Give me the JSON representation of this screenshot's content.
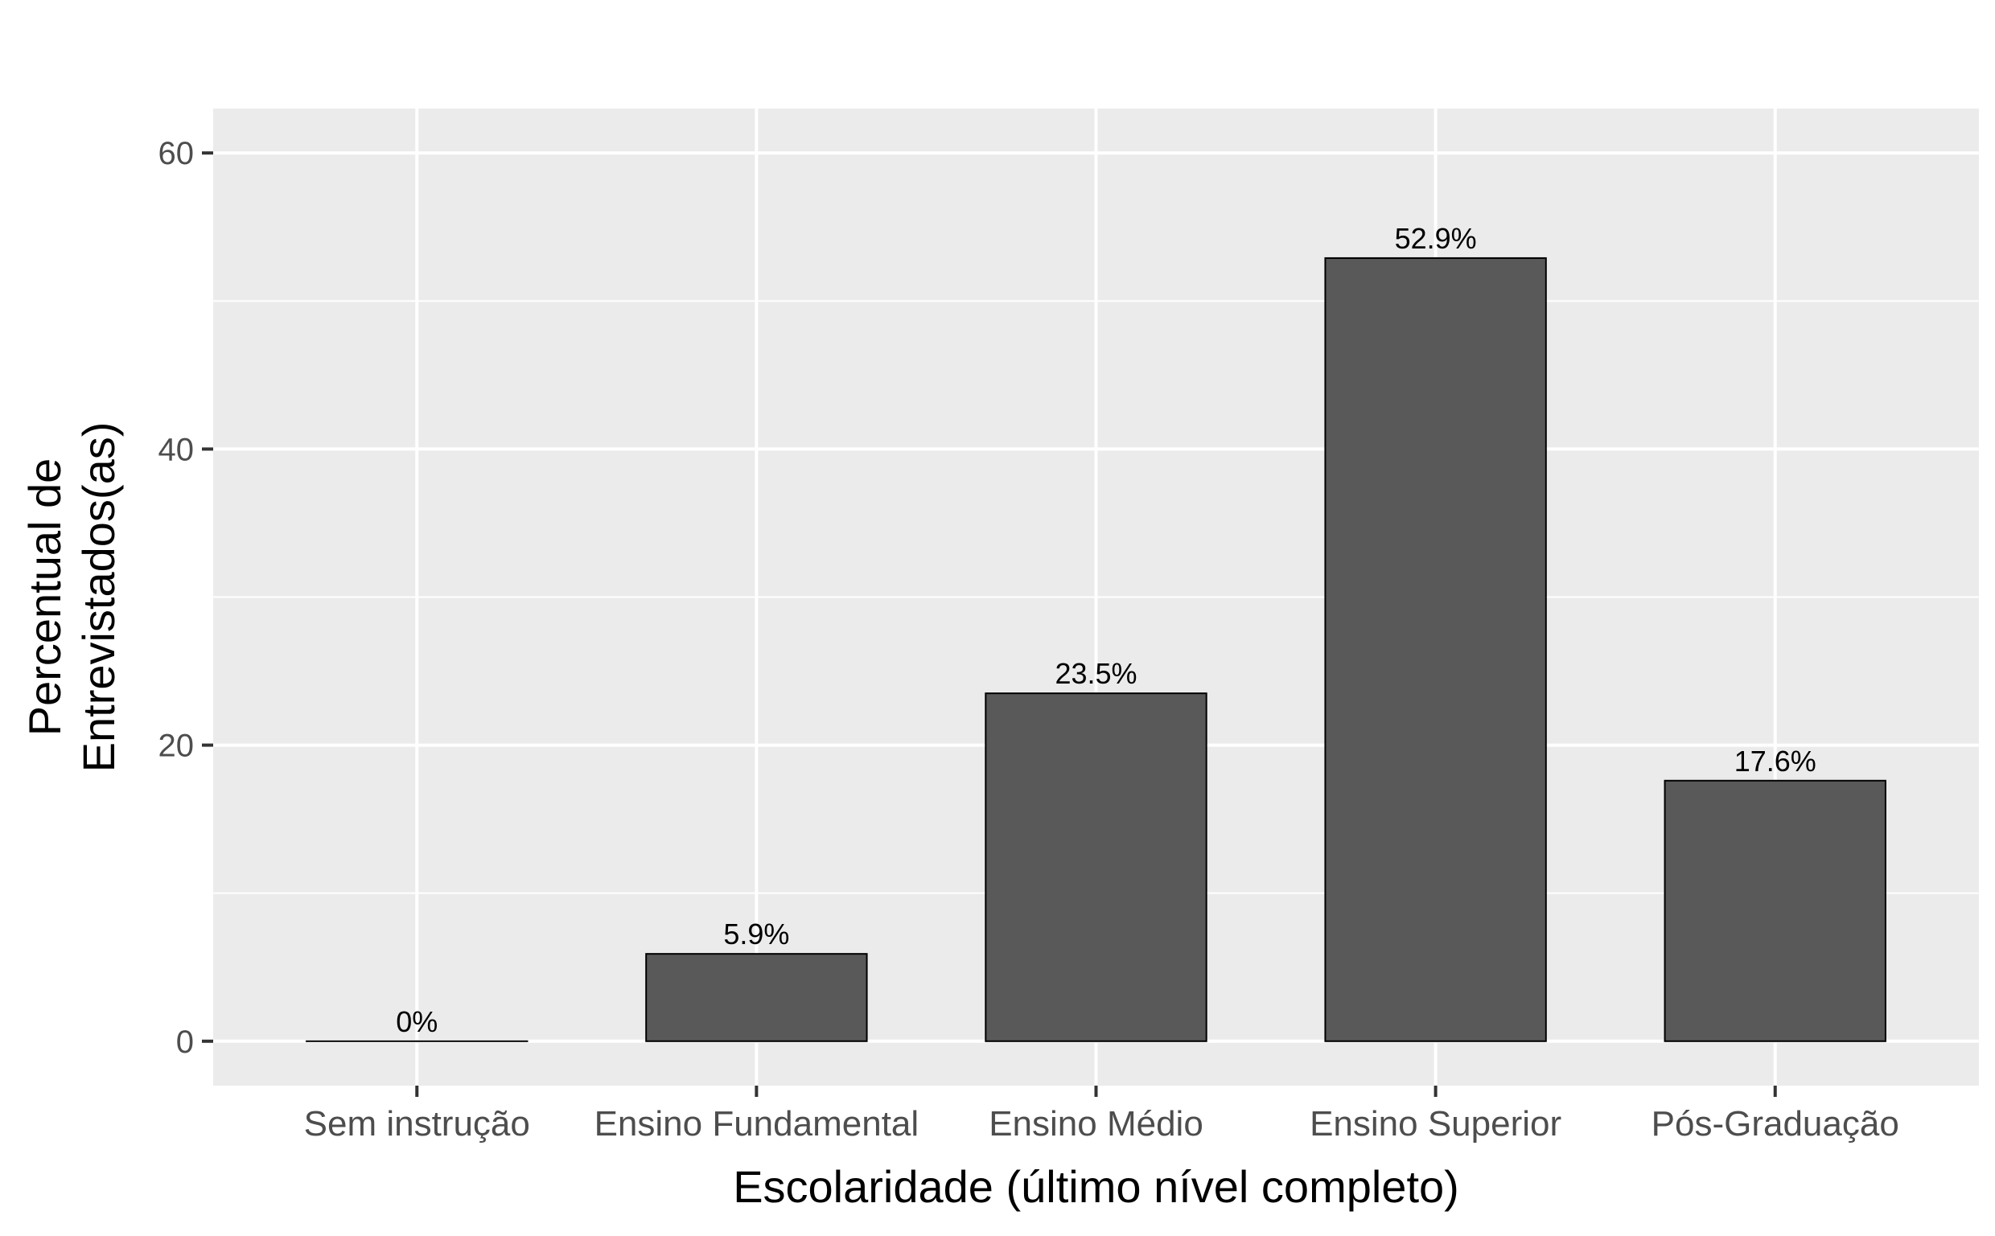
{
  "chart_data": {
    "type": "bar",
    "title": "",
    "xlabel": "Escolaridade (último nível completo)",
    "ylabel_lines": [
      "Percentual de",
      "Entrevistados(as)"
    ],
    "categories": [
      "Sem instrução",
      "Ensino Fundamental",
      "Ensino Médio",
      "Ensino Superior",
      "Pós-Graduação"
    ],
    "values": [
      0,
      5.9,
      23.5,
      52.9,
      17.6
    ],
    "data_labels": [
      "0%",
      "5.9%",
      "23.5%",
      "52.9%",
      "17.6%"
    ],
    "ylim": [
      -3,
      63
    ],
    "yticks": [
      0,
      20,
      40,
      60
    ],
    "yticks_minor": [
      10,
      30,
      50
    ],
    "grid": true,
    "legend": "none",
    "colors": {
      "panel_background": "#ebebeb",
      "grid": "#ffffff",
      "bar_fill": "#595959",
      "bar_outline": "#000000",
      "axis_ticks": "#333333"
    }
  }
}
